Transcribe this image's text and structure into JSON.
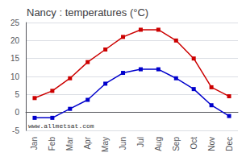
{
  "chart_data": {
    "type": "line",
    "title": "Nancy : temperatures (°C)",
    "categories": [
      "Jan",
      "Feb",
      "Mar",
      "Apr",
      "May",
      "Jun",
      "Jul",
      "Aug",
      "Sep",
      "Oct",
      "Nov",
      "Dec"
    ],
    "series": [
      {
        "color": "#cc0000",
        "marker": "square",
        "values": [
          4,
          6,
          9.5,
          14,
          17.5,
          21,
          23,
          23,
          20,
          15,
          7,
          4.5
        ]
      },
      {
        "color": "#0000cc",
        "marker": "square",
        "values": [
          -1.5,
          -1.5,
          1,
          3.5,
          8,
          11,
          12,
          12,
          9.5,
          6.5,
          2,
          -1
        ]
      }
    ],
    "ylim": [
      -5,
      25
    ],
    "yticks": [
      -5,
      0,
      5,
      10,
      15,
      20,
      25
    ],
    "grid": true,
    "annotations": [
      "www.allmetsat.com"
    ]
  }
}
